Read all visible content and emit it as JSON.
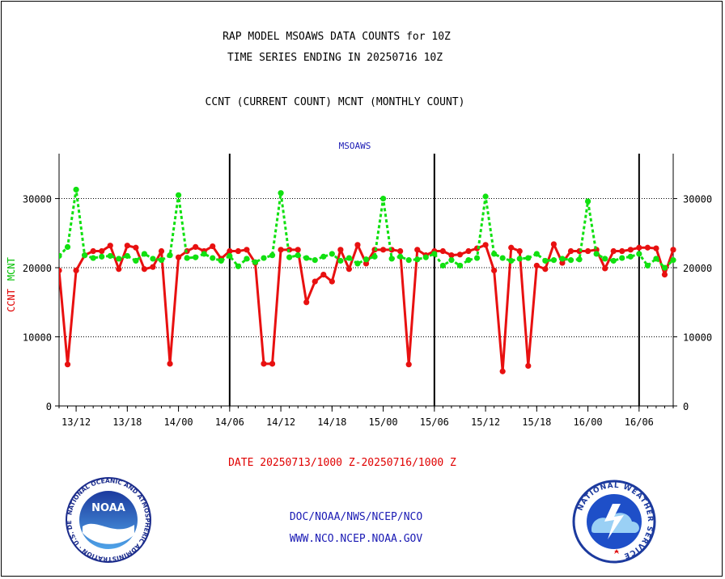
{
  "header": {
    "title_line1": "RAP MODEL MSOAWS DATA COUNTS for 10Z",
    "title_line2": "TIME SERIES ENDING IN 20250716 10Z",
    "subtitle": "CCNT (CURRENT COUNT) MCNT (MONTHLY COUNT)"
  },
  "footer": {
    "date_range": "DATE 20250713/1000 Z-20250716/1000 Z",
    "link1": "DOC/NOAA/NWS/NCEP/NCO",
    "link2": "WWW.NCO.NCEP.NOAA.GOV"
  },
  "logos": {
    "noaa": {
      "text": "NOAA",
      "ring_text": "NATIONAL OCEANIC AND ATMOSPHERIC ADMINISTRATION · U.S. DEPARTMENT OF COMMERCE"
    },
    "nws": {
      "ring_text": "NATIONAL WEATHER SERVICE"
    }
  },
  "colors": {
    "ccnt": "#e81010",
    "mcnt": "#10e010",
    "title_blue": "#1a1ab4",
    "ylabel_ccnt": "#e00000",
    "ylabel_mcnt": "#00c000"
  },
  "chart_data": {
    "type": "line",
    "title": "MSOAWS",
    "ylabel_parts": [
      "CCNT",
      "MCNT"
    ],
    "ylim": [
      0,
      36500
    ],
    "yticks": [
      0,
      10000,
      20000,
      30000
    ],
    "ytick_labels": [
      "0",
      "10000",
      "20000",
      "30000"
    ],
    "xlim": [
      0,
      72
    ],
    "xticks": [
      2,
      8,
      14,
      20,
      26,
      32,
      38,
      44,
      50,
      56,
      62,
      68
    ],
    "xtick_labels": [
      "13/12",
      "13/18",
      "14/00",
      "14/06",
      "14/12",
      "14/18",
      "15/00",
      "15/06",
      "15/12",
      "15/18",
      "16/00",
      "16/06"
    ],
    "day_boundaries": [
      20,
      44,
      68
    ],
    "grid": true,
    "x_hours": [
      0,
      1,
      2,
      3,
      4,
      5,
      6,
      7,
      8,
      9,
      10,
      11,
      12,
      13,
      14,
      15,
      16,
      17,
      18,
      19,
      20,
      21,
      22,
      23,
      24,
      25,
      26,
      27,
      28,
      29,
      30,
      31,
      32,
      33,
      34,
      35,
      36,
      37,
      38,
      39,
      40,
      41,
      42,
      43,
      44,
      45,
      46,
      47,
      48,
      49,
      50,
      51,
      52,
      53,
      54,
      55,
      56,
      57,
      58,
      59,
      60,
      61,
      62,
      63,
      64,
      65,
      66,
      67,
      68,
      69,
      70,
      71,
      72
    ],
    "series": [
      {
        "name": "CCNT",
        "values": [
          19600,
          6000,
          19600,
          21800,
          22400,
          22400,
          23200,
          19800,
          23200,
          22900,
          19800,
          20100,
          22400,
          6100,
          21500,
          22400,
          23000,
          22400,
          23100,
          21300,
          22400,
          22400,
          22600,
          20700,
          6100,
          6100,
          22600,
          22600,
          22600,
          15000,
          18000,
          19000,
          18000,
          22600,
          19800,
          23300,
          20600,
          22600,
          22600,
          22600,
          22400,
          6000,
          22600,
          21800,
          22400,
          22400,
          21800,
          21900,
          22400,
          22800,
          23300,
          19600,
          5000,
          22900,
          22400,
          5800,
          20300,
          19800,
          23400,
          20700,
          22400,
          22400,
          22400,
          22600,
          19900,
          22400,
          22400,
          22600,
          22900,
          22900,
          22800,
          19000,
          22600
        ]
      },
      {
        "name": "MCNT",
        "values": [
          21700,
          23000,
          31300,
          21800,
          21400,
          21600,
          21700,
          21300,
          21700,
          21000,
          22000,
          21300,
          21100,
          21800,
          30500,
          21400,
          21500,
          22000,
          21400,
          21000,
          21700,
          20200,
          21300,
          20800,
          21400,
          21800,
          30800,
          21500,
          21800,
          21400,
          21100,
          21600,
          22000,
          21000,
          21400,
          20600,
          21200,
          21600,
          30000,
          21300,
          21600,
          21100,
          21200,
          21500,
          22000,
          20300,
          21100,
          20300,
          21100,
          21400,
          30300,
          22000,
          21400,
          21000,
          21300,
          21400,
          22000,
          21000,
          21100,
          21300,
          21100,
          21200,
          29600,
          22000,
          21300,
          21000,
          21400,
          21600,
          22000,
          20300,
          21300,
          20000,
          21100
        ]
      }
    ]
  }
}
